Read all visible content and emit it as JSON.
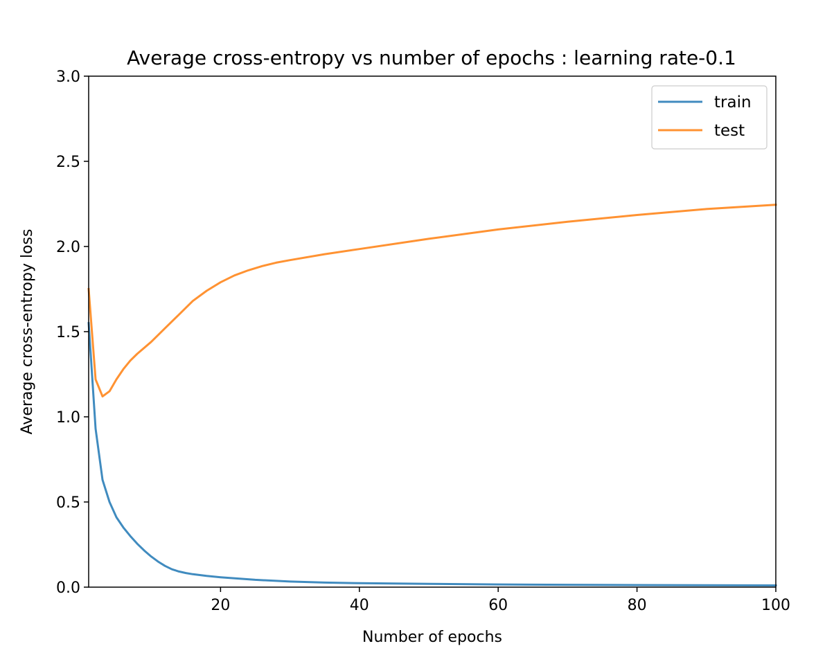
{
  "chart_data": {
    "type": "line",
    "title": "Average cross-entropy vs number of epochs : learning rate-0.1",
    "xlabel": "Number of epochs",
    "ylabel": "Average cross-entropy loss",
    "xlim": [
      1,
      100
    ],
    "ylim": [
      0.0,
      3.0
    ],
    "x_ticks": [
      20,
      40,
      60,
      80,
      100
    ],
    "x_tick_labels": [
      "20",
      "40",
      "60",
      "80",
      "100"
    ],
    "y_ticks": [
      0.0,
      0.5,
      1.0,
      1.5,
      2.0,
      2.5,
      3.0
    ],
    "y_tick_labels": [
      "0.0",
      "0.5",
      "1.0",
      "1.5",
      "2.0",
      "2.5",
      "3.0"
    ],
    "grid": false,
    "legend_position": "top-right",
    "series": [
      {
        "name": "train",
        "color": "#1f77b4",
        "x": [
          1,
          2,
          3,
          4,
          5,
          6,
          7,
          8,
          9,
          10,
          11,
          12,
          13,
          14,
          15,
          16,
          18,
          20,
          25,
          30,
          35,
          40,
          50,
          60,
          70,
          80,
          90,
          100
        ],
        "y": [
          1.55,
          0.93,
          0.63,
          0.5,
          0.41,
          0.35,
          0.3,
          0.255,
          0.215,
          0.18,
          0.15,
          0.125,
          0.105,
          0.092,
          0.083,
          0.076,
          0.066,
          0.058,
          0.043,
          0.033,
          0.027,
          0.023,
          0.019,
          0.016,
          0.014,
          0.012,
          0.011,
          0.01
        ]
      },
      {
        "name": "test",
        "color": "#ff7f0e",
        "x": [
          1,
          2,
          3,
          4,
          5,
          6,
          7,
          8,
          10,
          12,
          14,
          16,
          18,
          20,
          22,
          24,
          26,
          28,
          30,
          35,
          40,
          50,
          60,
          70,
          80,
          90,
          100
        ],
        "y": [
          1.75,
          1.22,
          1.12,
          1.15,
          1.22,
          1.28,
          1.33,
          1.37,
          1.44,
          1.52,
          1.6,
          1.68,
          1.74,
          1.79,
          1.83,
          1.86,
          1.885,
          1.905,
          1.92,
          1.955,
          1.985,
          2.045,
          2.1,
          2.145,
          2.185,
          2.22,
          2.245
        ]
      }
    ]
  }
}
